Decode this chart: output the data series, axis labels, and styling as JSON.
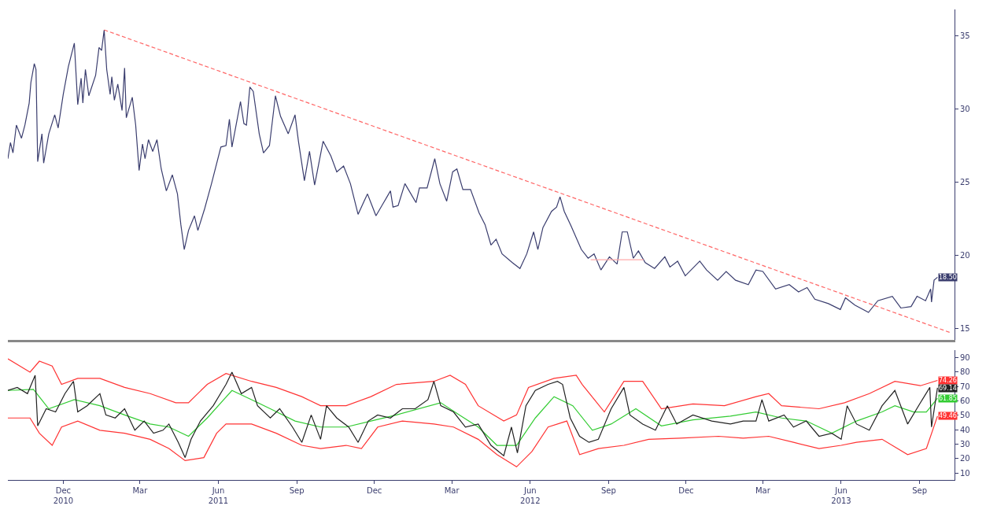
{
  "chart_data": [
    {
      "type": "line",
      "xlim": [
        "2010-10-11",
        "2013-10-26"
      ],
      "ylim": [
        14.2,
        36.8
      ],
      "yticks": [
        15,
        20,
        25,
        30,
        35
      ],
      "tick_labels": "y",
      "series": [
        {
          "color": "#3a3d6e",
          "x": [
            "2010-10-11",
            "2010-10-14",
            "2010-10-17",
            "2010-10-21",
            "2010-10-27",
            "2010-10-31",
            "2010-11-05",
            "2010-11-07",
            "2010-11-11",
            "2010-11-13",
            "2010-11-15",
            "2010-11-20",
            "2010-11-22",
            "2010-11-28",
            "2010-12-05",
            "2010-12-09",
            "2010-12-15",
            "2010-12-21",
            "2010-12-28",
            "2011-01-01",
            "2011-01-05",
            "2011-01-07",
            "2011-01-10",
            "2011-01-14",
            "2011-01-22",
            "2011-01-26",
            "2011-01-29",
            "2011-02-01",
            "2011-02-04",
            "2011-02-08",
            "2011-02-10",
            "2011-02-13",
            "2011-02-17",
            "2011-02-22",
            "2011-02-25",
            "2011-02-27",
            "2011-03-06",
            "2011-03-10",
            "2011-03-14",
            "2011-03-18",
            "2011-03-21",
            "2011-03-25",
            "2011-03-30",
            "2011-04-04",
            "2011-04-09",
            "2011-04-15",
            "2011-04-22",
            "2011-04-28",
            "2011-05-02",
            "2011-05-06",
            "2011-05-11",
            "2011-05-18",
            "2011-05-22",
            "2011-05-30",
            "2011-06-07",
            "2011-06-18",
            "2011-06-24",
            "2011-06-28",
            "2011-07-01",
            "2011-07-11",
            "2011-07-15",
            "2011-07-18",
            "2011-07-22",
            "2011-07-26",
            "2011-08-02",
            "2011-08-07",
            "2011-08-14",
            "2011-08-21",
            "2011-08-27",
            "2011-09-05",
            "2011-09-13",
            "2011-09-17",
            "2011-09-24",
            "2011-09-30",
            "2011-10-06",
            "2011-10-16",
            "2011-10-25",
            "2011-11-01",
            "2011-11-09",
            "2011-11-17",
            "2011-11-26",
            "2011-12-07",
            "2011-12-17",
            "2011-12-26",
            "2012-01-03",
            "2012-01-06",
            "2012-01-12",
            "2012-01-20",
            "2012-02-02",
            "2012-02-06",
            "2012-02-15",
            "2012-02-24",
            "2012-03-01",
            "2012-03-09",
            "2012-03-16",
            "2012-03-21",
            "2012-03-28",
            "2012-04-06",
            "2012-04-16",
            "2012-04-23",
            "2012-04-30",
            "2012-05-06",
            "2012-05-13",
            "2012-05-25",
            "2012-06-03",
            "2012-06-11",
            "2012-06-19",
            "2012-06-24",
            "2012-06-30",
            "2012-07-10",
            "2012-07-16",
            "2012-07-20",
            "2012-07-25",
            "2012-08-02",
            "2012-08-14",
            "2012-08-22",
            "2012-08-29",
            "2012-09-06",
            "2012-09-16",
            "2012-09-25",
            "2012-10-01",
            "2012-10-07",
            "2012-10-14",
            "2012-10-20",
            "2012-10-28",
            "2012-11-08",
            "2012-11-20",
            "2012-11-26",
            "2012-12-05",
            "2012-12-14",
            "2012-12-31",
            "2013-01-08",
            "2013-01-21",
            "2013-01-31",
            "2013-02-11",
            "2013-02-26",
            "2013-03-07",
            "2013-03-15",
            "2013-03-30",
            "2013-04-15",
            "2013-04-26",
            "2013-05-06",
            "2013-05-15",
            "2013-05-31",
            "2013-06-14",
            "2013-06-20",
            "2013-07-01",
            "2013-07-17",
            "2013-07-28",
            "2013-08-14",
            "2013-08-24",
            "2013-09-05",
            "2013-09-12",
            "2013-09-22",
            "2013-09-28",
            "2013-09-29",
            "2013-10-02",
            "2013-10-06"
          ],
          "values": [
            26.6,
            27.7,
            27.0,
            28.9,
            28.0,
            28.9,
            30.4,
            31.8,
            33.1,
            32.7,
            26.4,
            28.3,
            26.3,
            28.3,
            29.6,
            28.7,
            31.0,
            32.9,
            34.5,
            30.3,
            32.1,
            30.4,
            32.7,
            30.9,
            32.3,
            34.2,
            34.0,
            35.4,
            32.7,
            31.0,
            32.2,
            30.6,
            31.7,
            29.9,
            32.8,
            29.4,
            30.8,
            28.9,
            25.8,
            27.6,
            26.6,
            27.9,
            27.1,
            27.9,
            25.9,
            24.4,
            25.5,
            24.2,
            22.1,
            20.4,
            21.7,
            22.7,
            21.7,
            23.2,
            24.9,
            27.4,
            27.5,
            29.3,
            27.4,
            30.5,
            29.0,
            28.9,
            31.5,
            31.2,
            28.3,
            27.0,
            27.5,
            30.9,
            29.5,
            28.3,
            29.6,
            27.8,
            25.1,
            27.1,
            24.8,
            27.8,
            26.8,
            25.7,
            26.1,
            24.9,
            22.8,
            24.2,
            22.7,
            23.6,
            24.4,
            23.3,
            23.4,
            24.9,
            23.6,
            24.6,
            24.6,
            26.6,
            24.9,
            23.7,
            25.7,
            25.9,
            24.5,
            24.5,
            22.9,
            22.1,
            20.7,
            21.1,
            20.1,
            19.5,
            19.1,
            20.1,
            21.6,
            20.4,
            21.9,
            23.0,
            23.3,
            24.0,
            23.0,
            22.0,
            20.4,
            19.8,
            20.1,
            19.0,
            19.9,
            19.4,
            21.6,
            21.6,
            19.8,
            20.3,
            19.5,
            19.1,
            19.9,
            19.2,
            19.6,
            18.6,
            19.6,
            19.0,
            18.3,
            18.9,
            18.3,
            18.0,
            19.0,
            18.9,
            17.7,
            18.0,
            17.5,
            17.8,
            17.0,
            16.7,
            16.3,
            17.1,
            16.6,
            16.1,
            16.9,
            17.2,
            16.4,
            16.5,
            17.2,
            16.9,
            17.7,
            16.8,
            18.3,
            18.5
          ]
        },
        {
          "color": "#ff6666",
          "line_style": "dashed",
          "x": [
            "2011-02-01",
            "2013-10-22"
          ],
          "values": [
            35.4,
            14.7
          ]
        },
        {
          "color": "#ffaaaa",
          "x": [
            "2012-08-25",
            "2012-10-26"
          ],
          "values": [
            19.7,
            19.7
          ]
        }
      ],
      "annotations": [
        {
          "text": "18.50",
          "x": "2013-10-06",
          "y": 18.5
        }
      ]
    },
    {
      "type": "line",
      "xlim": [
        "2010-10-11",
        "2013-10-26"
      ],
      "ylim": [
        5.2,
        95.3
      ],
      "yticks": [
        10,
        20,
        30,
        40,
        50,
        60,
        70,
        80,
        90
      ],
      "xticks": [
        {
          "value": "2010-12-15",
          "label": "Dec\n2010"
        },
        {
          "value": "2011-03-15",
          "label": "Mar"
        },
        {
          "value": "2011-06-15",
          "label": "Jun\n2011"
        },
        {
          "value": "2011-09-15",
          "label": "Sep"
        },
        {
          "value": "2011-12-15",
          "label": "Dec"
        },
        {
          "value": "2012-03-15",
          "label": "Mar"
        },
        {
          "value": "2012-06-15",
          "label": "Jun\n2012"
        },
        {
          "value": "2012-09-15",
          "label": "Sep"
        },
        {
          "value": "2012-12-15",
          "label": "Dec"
        },
        {
          "value": "2013-03-15",
          "label": "Mar"
        },
        {
          "value": "2013-06-15",
          "label": "Jun\n2013"
        },
        {
          "value": "2013-09-15",
          "label": "Sep"
        }
      ],
      "series": [
        {
          "color": "#ff3333",
          "x": [
            "2010-10-11",
            "2010-11-06",
            "2010-11-17",
            "2010-12-02",
            "2010-12-13",
            "2011-01-01",
            "2011-01-27",
            "2011-02-25",
            "2011-03-27",
            "2011-04-26",
            "2011-05-11",
            "2011-06-02",
            "2011-06-24",
            "2011-07-24",
            "2011-08-22",
            "2011-09-21",
            "2011-10-13",
            "2011-11-12",
            "2011-12-11",
            "2012-01-10",
            "2012-02-23",
            "2012-03-13",
            "2012-03-31",
            "2012-04-15",
            "2012-05-15",
            "2012-05-30",
            "2012-06-13",
            "2012-07-13",
            "2012-08-08",
            "2012-08-15",
            "2012-09-10",
            "2012-10-03",
            "2012-10-25",
            "2012-11-16",
            "2012-12-23",
            "2013-01-29",
            "2013-03-07",
            "2013-03-22",
            "2013-04-06",
            "2013-05-20",
            "2013-06-19",
            "2013-07-18",
            "2013-08-17",
            "2013-09-16",
            "2013-10-06"
          ],
          "values": [
            89.3,
            80.0,
            87.6,
            84.2,
            71.5,
            75.7,
            75.7,
            69.4,
            65.1,
            58.8,
            58.8,
            71.5,
            79.1,
            73.6,
            69.4,
            63.0,
            56.7,
            56.7,
            63.0,
            71.5,
            73.6,
            77.8,
            71.5,
            56.7,
            46.1,
            50.3,
            69.4,
            75.7,
            77.8,
            71.5,
            52.4,
            73.6,
            73.6,
            54.6,
            57.9,
            56.7,
            63.0,
            65.1,
            56.7,
            54.6,
            58.8,
            65.1,
            73.6,
            70.6,
            74.26
          ]
        },
        {
          "color": "#ff3333",
          "x": [
            "2010-10-11",
            "2010-11-06",
            "2010-11-17",
            "2010-12-02",
            "2010-12-13",
            "2011-01-01",
            "2011-01-27",
            "2011-02-25",
            "2011-03-27",
            "2011-04-18",
            "2011-05-07",
            "2011-05-29",
            "2011-06-13",
            "2011-06-24",
            "2011-07-24",
            "2011-08-22",
            "2011-09-21",
            "2011-10-13",
            "2011-11-12",
            "2011-11-30",
            "2011-12-19",
            "2012-01-17",
            "2012-02-23",
            "2012-03-17",
            "2012-04-15",
            "2012-05-07",
            "2012-05-30",
            "2012-06-17",
            "2012-07-06",
            "2012-07-28",
            "2012-08-12",
            "2012-09-03",
            "2012-10-03",
            "2012-11-01",
            "2012-12-08",
            "2013-01-22",
            "2013-02-20",
            "2013-03-22",
            "2013-04-20",
            "2013-05-20",
            "2013-06-15",
            "2013-07-03",
            "2013-08-02",
            "2013-09-01",
            "2013-09-23",
            "2013-10-06"
          ],
          "values": [
            48.2,
            48.2,
            37.6,
            29.2,
            41.9,
            46.1,
            39.7,
            37.6,
            33.4,
            27.0,
            18.6,
            20.7,
            37.6,
            44.0,
            44.0,
            37.6,
            29.2,
            27.0,
            29.2,
            27.0,
            41.9,
            46.1,
            44.0,
            41.9,
            33.4,
            22.8,
            14.3,
            24.9,
            41.9,
            46.1,
            22.8,
            27.0,
            29.2,
            33.4,
            34.2,
            35.5,
            34.2,
            35.5,
            31.3,
            27.0,
            29.2,
            31.3,
            33.4,
            22.8,
            27.0,
            49.46
          ]
        },
        {
          "color": "#33cc33",
          "x": [
            "2010-10-11",
            "2010-11-10",
            "2010-11-28",
            "2010-12-28",
            "2011-01-27",
            "2011-02-25",
            "2011-03-27",
            "2011-04-18",
            "2011-05-11",
            "2011-06-02",
            "2011-07-01",
            "2011-07-24",
            "2011-08-15",
            "2011-09-13",
            "2011-10-13",
            "2011-11-12",
            "2011-12-11",
            "2012-01-10",
            "2012-03-02",
            "2012-03-24",
            "2012-04-15",
            "2012-05-07",
            "2012-05-30",
            "2012-06-21",
            "2012-07-13",
            "2012-08-04",
            "2012-08-27",
            "2012-09-18",
            "2012-10-17",
            "2012-11-16",
            "2012-12-23",
            "2013-02-05",
            "2013-03-07",
            "2013-04-06",
            "2013-05-05",
            "2013-06-04",
            "2013-07-03",
            "2013-08-02",
            "2013-08-17",
            "2013-09-08",
            "2013-09-23",
            "2013-10-06"
          ],
          "values": [
            67.3,
            68.1,
            54.6,
            60.9,
            56.7,
            50.3,
            44.0,
            41.9,
            35.5,
            48.2,
            67.3,
            60.9,
            54.6,
            46.1,
            41.9,
            41.9,
            46.1,
            50.3,
            58.8,
            50.3,
            41.9,
            29.2,
            29.2,
            48.2,
            63.0,
            56.7,
            39.7,
            44.0,
            54.6,
            42.7,
            46.9,
            49.5,
            52.4,
            48.2,
            46.1,
            37.6,
            46.1,
            52.4,
            56.7,
            52.4,
            52.4,
            61.85
          ]
        },
        {
          "color": "#222222",
          "x": [
            "2010-10-11",
            "2010-10-22",
            "2010-11-03",
            "2010-11-12",
            "2010-11-15",
            "2010-11-25",
            "2010-12-06",
            "2010-12-17",
            "2010-12-27",
            "2011-01-01",
            "2011-01-12",
            "2011-01-27",
            "2011-02-03",
            "2011-02-14",
            "2011-02-25",
            "2011-03-09",
            "2011-03-20",
            "2011-03-31",
            "2011-04-11",
            "2011-04-18",
            "2011-04-29",
            "2011-05-07",
            "2011-05-14",
            "2011-05-25",
            "2011-06-09",
            "2011-06-24",
            "2011-07-01",
            "2011-07-12",
            "2011-07-24",
            "2011-07-31",
            "2011-08-15",
            "2011-08-26",
            "2011-09-10",
            "2011-09-21",
            "2011-10-02",
            "2011-10-13",
            "2011-10-20",
            "2011-11-01",
            "2011-11-15",
            "2011-11-26",
            "2011-12-08",
            "2011-12-19",
            "2012-01-03",
            "2012-01-17",
            "2012-02-01",
            "2012-02-16",
            "2012-02-23",
            "2012-03-02",
            "2012-03-17",
            "2012-03-31",
            "2012-04-15",
            "2012-04-30",
            "2012-05-15",
            "2012-05-24",
            "2012-05-31",
            "2012-06-10",
            "2012-06-21",
            "2012-07-06",
            "2012-07-17",
            "2012-07-23",
            "2012-08-01",
            "2012-08-12",
            "2012-08-23",
            "2012-09-03",
            "2012-09-18",
            "2012-10-03",
            "2012-10-10",
            "2012-10-25",
            "2012-11-09",
            "2012-11-23",
            "2012-12-04",
            "2012-12-23",
            "2013-01-14",
            "2013-02-05",
            "2013-02-20",
            "2013-03-07",
            "2013-03-14",
            "2013-03-22",
            "2013-04-09",
            "2013-04-20",
            "2013-05-05",
            "2013-05-20",
            "2013-06-04",
            "2013-06-15",
            "2013-06-22",
            "2013-07-03",
            "2013-07-18",
            "2013-08-02",
            "2013-08-17",
            "2013-09-01",
            "2013-09-16",
            "2013-09-27",
            "2013-09-29",
            "2013-10-06"
          ],
          "values": [
            67.3,
            69.4,
            65.1,
            77.8,
            42.7,
            54.6,
            52.4,
            65.1,
            73.6,
            52.4,
            56.7,
            65.1,
            50.3,
            48.2,
            54.6,
            39.7,
            46.1,
            37.6,
            39.7,
            44.0,
            31.3,
            20.7,
            33.4,
            46.1,
            56.7,
            71.5,
            80.0,
            65.1,
            69.4,
            56.7,
            48.2,
            54.6,
            41.9,
            31.3,
            50.3,
            33.4,
            56.7,
            48.2,
            41.9,
            31.3,
            46.1,
            50.3,
            48.2,
            54.6,
            54.6,
            60.9,
            73.6,
            56.7,
            52.4,
            41.9,
            44.0,
            29.2,
            22.0,
            41.9,
            24.0,
            56.7,
            67.3,
            71.5,
            73.6,
            71.5,
            48.2,
            35.5,
            31.3,
            33.4,
            54.6,
            69.4,
            50.3,
            44.0,
            39.7,
            56.7,
            44.0,
            50.3,
            46.1,
            44.0,
            46.1,
            46.1,
            60.9,
            46.1,
            50.3,
            41.9,
            46.1,
            35.5,
            37.6,
            33.4,
            56.7,
            44.0,
            39.7,
            56.7,
            67.3,
            44.0,
            58.8,
            69.4,
            41.9,
            69.14
          ]
        }
      ],
      "annotations": [
        {
          "text": "74.26",
          "x": "2013-10-06",
          "y": 74.26
        },
        {
          "text": "69.14",
          "x": "2013-10-06",
          "y": 69.14
        },
        {
          "text": "61.85",
          "x": "2013-10-06",
          "y": 61.85
        },
        {
          "text": "49.46",
          "x": "2013-10-06",
          "y": 49.46
        }
      ]
    }
  ]
}
